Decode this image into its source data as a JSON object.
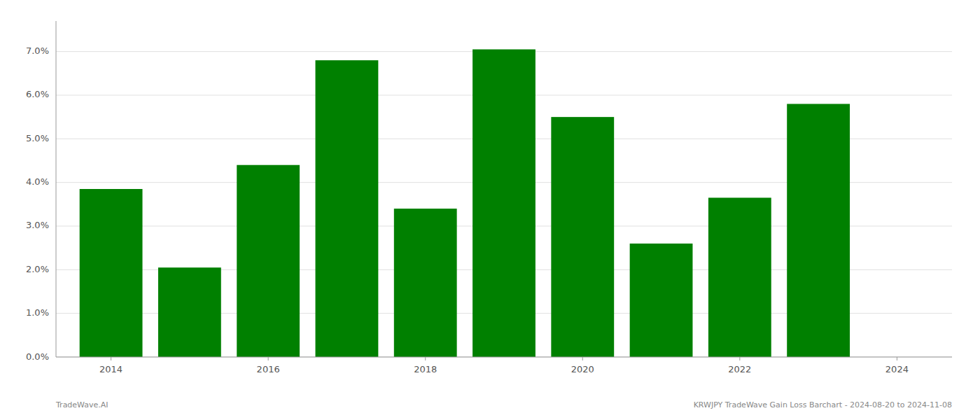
{
  "chart_data": {
    "type": "bar",
    "x": [
      2014,
      2015,
      2016,
      2017,
      2018,
      2019,
      2020,
      2021,
      2022,
      2023
    ],
    "values": [
      0.0385,
      0.0205,
      0.044,
      0.068,
      0.034,
      0.0705,
      0.055,
      0.026,
      0.0365,
      0.058
    ],
    "color": "#008000",
    "xlim": [
      2013.3,
      2024.7
    ],
    "xticks": [
      2014,
      2016,
      2018,
      2020,
      2022,
      2024
    ],
    "ylim": [
      0,
      0.077
    ],
    "yticks": [
      {
        "value": 0.0,
        "label": "0.0%"
      },
      {
        "value": 0.01,
        "label": "1.0%"
      },
      {
        "value": 0.02,
        "label": "2.0%"
      },
      {
        "value": 0.03,
        "label": "3.0%"
      },
      {
        "value": 0.04,
        "label": "4.0%"
      },
      {
        "value": 0.05,
        "label": "5.0%"
      },
      {
        "value": 0.06,
        "label": "6.0%"
      },
      {
        "value": 0.07,
        "label": "7.0%"
      }
    ],
    "grid": true,
    "annotations": [
      "TradeWave.AI",
      "KRWJPY TradeWave Gain Loss Barchart - 2024-08-20 to 2024-11-08"
    ]
  }
}
